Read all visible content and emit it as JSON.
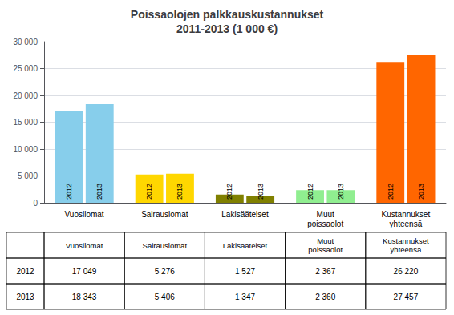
{
  "chart_data": {
    "type": "bar",
    "title": "Poissaolojen palkkauskustannukset\n2011-2013 (1 000 €)",
    "categories": [
      "Vuosilomat",
      "Sairauslomat",
      "Lakisääteiset",
      "Muut\npoissaolot",
      "Kustannukset\nyhteensä"
    ],
    "series": [
      {
        "name": "2012",
        "values": [
          17049,
          5276,
          1527,
          2367,
          26220
        ],
        "value_labels": [
          "17 049",
          "5 276",
          "1 527",
          "2 367",
          "26 220"
        ],
        "colors": [
          "#87CEEB",
          "#FFD700",
          "#808000",
          "#90EE90",
          "#FF6600"
        ]
      },
      {
        "name": "2013",
        "values": [
          18343,
          5406,
          1347,
          2360,
          27457
        ],
        "value_labels": [
          "18 343",
          "5 406",
          "1 347",
          "2 360",
          "27 457"
        ],
        "colors": [
          "#87CEEB",
          "#FFD700",
          "#808000",
          "#90EE90",
          "#FF6600"
        ]
      }
    ],
    "ylim": [
      0,
      30000
    ],
    "yticks": [
      0,
      {
        "value": 5000,
        "label": "5 000"
      },
      {
        "value": 10000,
        "label": "10 000"
      },
      {
        "value": 15000,
        "label": "15 000"
      },
      {
        "value": 20000,
        "label": "20 000"
      },
      {
        "value": 25000,
        "label": "25 000"
      },
      {
        "value": 30000,
        "label": "30 000"
      }
    ],
    "grid": true
  }
}
